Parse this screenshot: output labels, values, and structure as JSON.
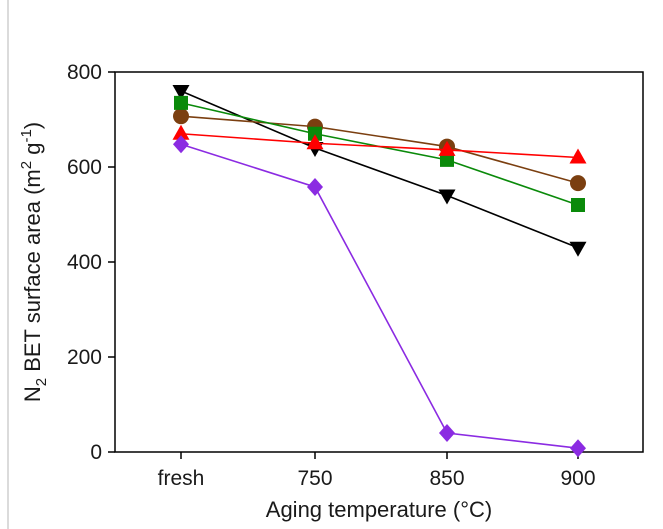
{
  "chart_data": {
    "type": "line",
    "categories": [
      "fresh",
      "750",
      "850",
      "900"
    ],
    "xlabel": "Aging temperature (°C)",
    "ylabel": {
      "pre": "N",
      "sub": "2",
      "mid": " BET surface area (m",
      "sup1": "2",
      "mid2": " g",
      "sup2": "-1",
      "post": ")"
    },
    "ylim": [
      0,
      800
    ],
    "yticks": [
      "0",
      "200",
      "400",
      "600",
      "800"
    ],
    "grid": false,
    "series": [
      {
        "marker": "triangle-down",
        "color": "#000000",
        "values": [
          760,
          640,
          540,
          430
        ]
      },
      {
        "marker": "circle",
        "color": "#7b3f10",
        "values": [
          707,
          685,
          643,
          566
        ]
      },
      {
        "marker": "square",
        "color": "#0a8a0a",
        "values": [
          735,
          670,
          615,
          520
        ]
      },
      {
        "marker": "triangle-up",
        "color": "#ff0000",
        "values": [
          670,
          650,
          636,
          620
        ]
      },
      {
        "marker": "diamond",
        "color": "#8b2be2",
        "values": [
          648,
          558,
          40,
          8
        ]
      }
    ]
  }
}
